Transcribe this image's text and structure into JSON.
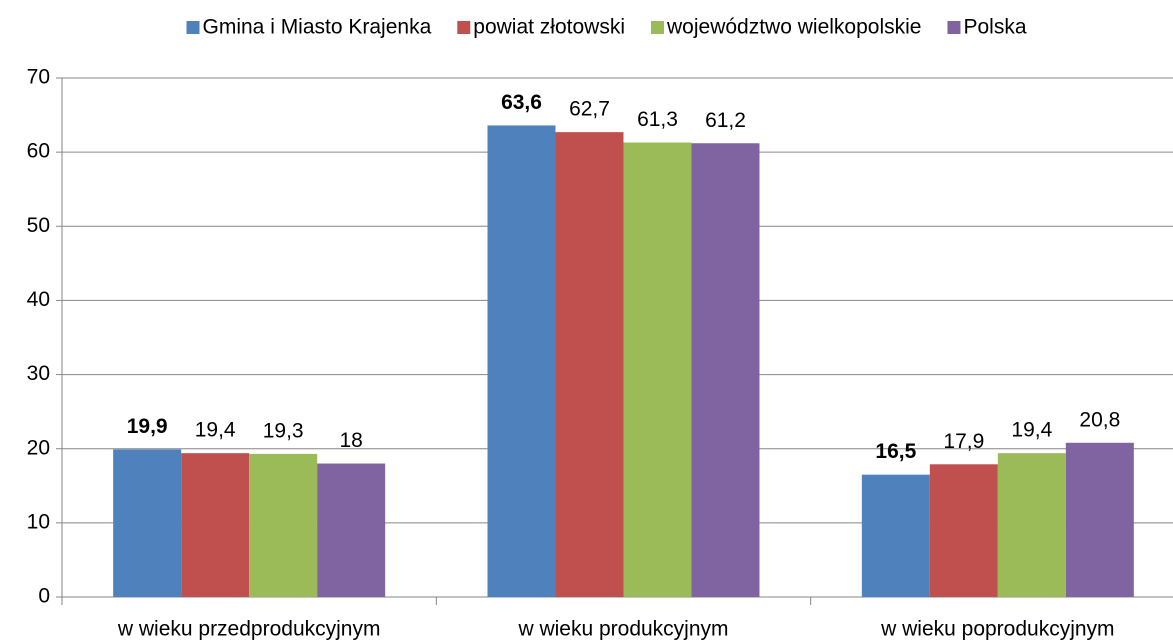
{
  "chart_data": {
    "type": "bar",
    "categories": [
      "w wieku przedprodukcyjnym",
      "w wieku produkcyjnym",
      "w wieku poprodukcyjnym"
    ],
    "series": [
      {
        "name": "Gmina i Miasto Krajenka",
        "color": "#4f81bd",
        "values": [
          19.9,
          63.6,
          16.5
        ],
        "value_labels": [
          "19,9",
          "63,6",
          "16,5"
        ],
        "bold_labels": true
      },
      {
        "name": "powiat złotowski",
        "color": "#c0504d",
        "values": [
          19.4,
          62.7,
          17.9
        ],
        "value_labels": [
          "19,4",
          "62,7",
          "17,9"
        ]
      },
      {
        "name": "województwo wielkopolskie",
        "color": "#9bbb59",
        "values": [
          19.3,
          61.3,
          19.4
        ],
        "value_labels": [
          "19,3",
          "61,3",
          "19,4"
        ]
      },
      {
        "name": "Polska",
        "color": "#8064a2",
        "values": [
          18,
          61.2,
          20.8
        ],
        "value_labels": [
          "18",
          "61,2",
          "20,8"
        ]
      }
    ],
    "ylim": [
      0,
      70
    ],
    "yticks": [
      0,
      10,
      20,
      30,
      40,
      50,
      60,
      70
    ],
    "grid": true,
    "legend": "top"
  }
}
